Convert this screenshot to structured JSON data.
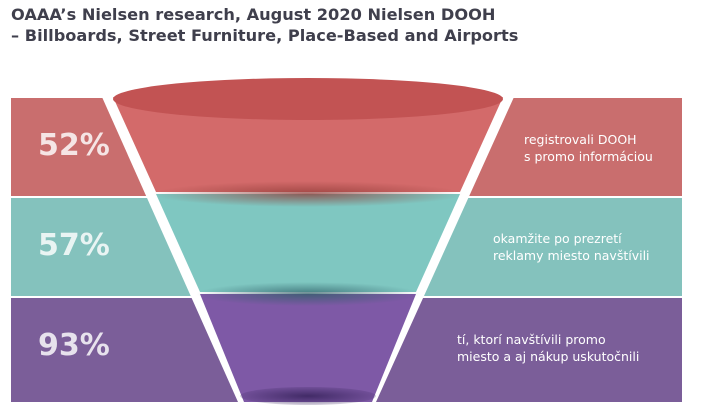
{
  "title_lines": [
    "OAAA’s Nielsen research, August 2020 Nielsen DOOH",
    "– Billboards, Street Furniture, Place-Based and Airports"
  ],
  "colors": {
    "band_red": "#c96e6e",
    "band_teal": "#84c2bd",
    "band_purple": "#7b5e99",
    "funnel_red_top": "#c25353",
    "funnel_red_body": "#d36a6a",
    "funnel_teal_body": "#7fc7c1",
    "funnel_purple_body": "#7e59a6",
    "title_text": "#3f3f4c"
  },
  "chart_data": {
    "type": "funnel",
    "title": "OAAA’s Nielsen research, August 2020 Nielsen DOOH – Billboards, Street Furniture, Place-Based and Airports",
    "stages": [
      {
        "value": 52,
        "label": "52%",
        "description_lines": [
          "registrovali DOOH",
          "s promo informáciou"
        ]
      },
      {
        "value": 57,
        "label": "57%",
        "description_lines": [
          "okamžite po prezretí",
          "reklamy miesto navštívili"
        ]
      },
      {
        "value": 93,
        "label": "93%",
        "description_lines": [
          "tí, ktorí navštívili promo",
          "miesto a aj nákup uskutočnili"
        ]
      }
    ]
  }
}
